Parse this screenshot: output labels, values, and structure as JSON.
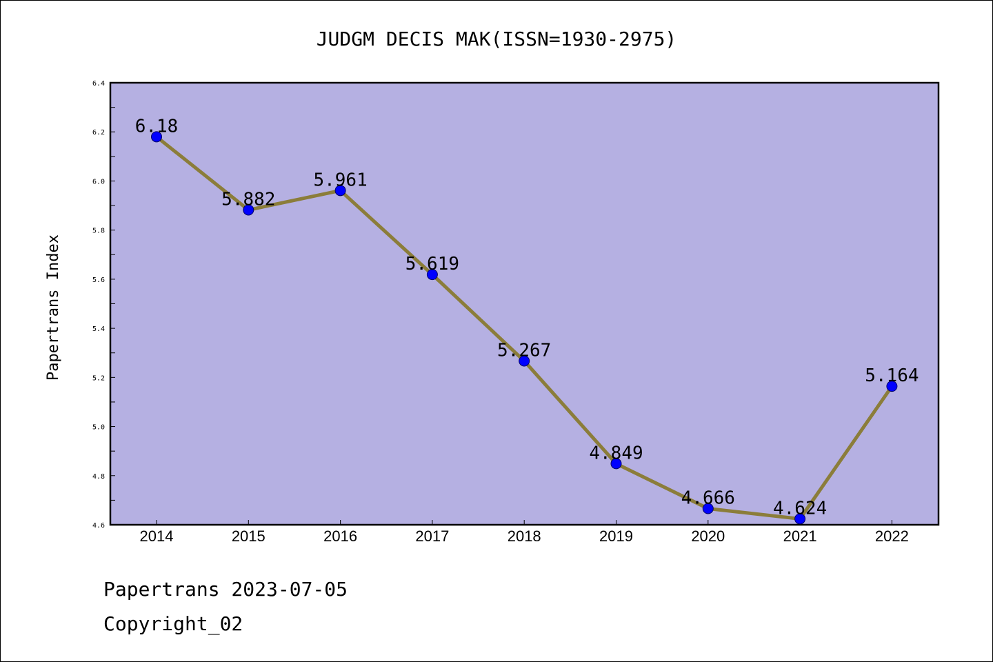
{
  "chart_data": {
    "type": "line",
    "title": "JUDGM DECIS MAK(ISSN=1930-2975)",
    "ylabel": "Papertrans Index",
    "xlabel": "",
    "categories": [
      "2014",
      "2015",
      "2016",
      "2017",
      "2018",
      "2019",
      "2020",
      "2021",
      "2022"
    ],
    "values": [
      6.18,
      5.882,
      5.961,
      5.619,
      5.267,
      4.849,
      4.666,
      4.624,
      5.164
    ],
    "value_labels": [
      "6.18",
      "5.882",
      "5.961",
      "5.619",
      "5.267",
      "4.849",
      "4.666",
      "4.624",
      "5.164"
    ],
    "ylim": [
      4.6,
      6.4
    ],
    "yticks": [
      "4.6",
      "4.8",
      "5.0",
      "5.2",
      "5.4",
      "5.6",
      "5.8",
      "6.0",
      "6.2",
      "6.4"
    ],
    "grid": false,
    "legend": "none",
    "colors": {
      "plot_background": "#b5b0e2",
      "line": "#8b7d3a",
      "marker": "#0000ff",
      "marker_edge": "#000066"
    }
  },
  "footer": {
    "date_text": "Papertrans 2023-07-05",
    "copyright_text": "Copyright_02"
  }
}
